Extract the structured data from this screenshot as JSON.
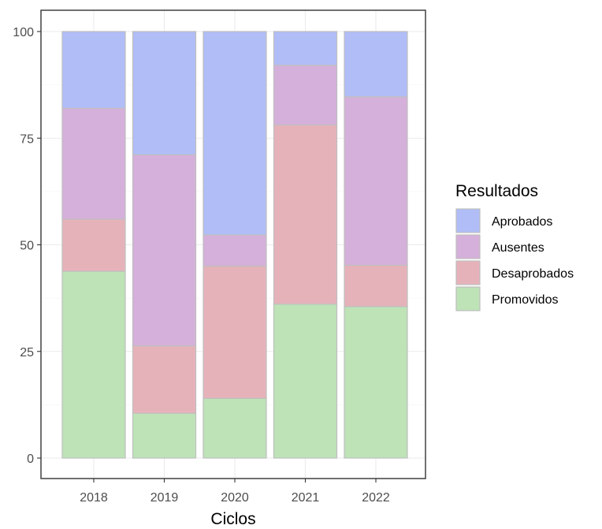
{
  "chart_data": {
    "type": "bar",
    "stacked": true,
    "categories": [
      "2018",
      "2019",
      "2020",
      "2021",
      "2022"
    ],
    "series": [
      {
        "name": "Promovidos",
        "color": "#bde3b7",
        "values": [
          43.8,
          10.5,
          14.0,
          36.1,
          35.5
        ]
      },
      {
        "name": "Desaprobados",
        "color": "#e6b2b9",
        "values": [
          12.2,
          15.8,
          31.0,
          42.0,
          9.7
        ]
      },
      {
        "name": "Ausentes",
        "color": "#d5b0da",
        "values": [
          26.0,
          44.8,
          7.3,
          14.0,
          39.5
        ]
      },
      {
        "name": "Aprobados",
        "color": "#b0bdf7",
        "values": [
          18.0,
          28.9,
          47.7,
          7.9,
          15.3
        ]
      }
    ],
    "xlabel": "Ciclos",
    "ylabel": "",
    "ylim": [
      0,
      105
    ],
    "yticks": [
      0,
      25,
      50,
      75,
      100
    ],
    "grid": true,
    "legend": {
      "title": "Resultados",
      "placement": "right",
      "entries": [
        "Aprobados",
        "Ausentes",
        "Desaprobados",
        "Promovidos"
      ]
    }
  }
}
